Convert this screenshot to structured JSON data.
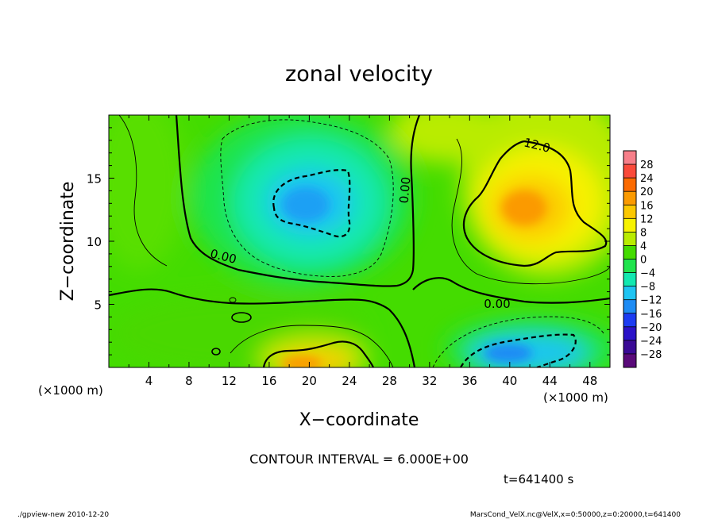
{
  "chart_data": {
    "type": "heatmap",
    "title": "zonal velocity",
    "xlabel": "X−coordinate",
    "ylabel": "Z−coordinate",
    "x_unit_label": "(×1000 m)",
    "y_unit_label": "(×1000 m)",
    "xlim": [
      0,
      50
    ],
    "ylim": [
      0,
      20
    ],
    "x_ticks": [
      {
        "v": 4,
        "label": "4"
      },
      {
        "v": 8,
        "label": "8"
      },
      {
        "v": 12,
        "label": "12"
      },
      {
        "v": 16,
        "label": "16"
      },
      {
        "v": 20,
        "label": "20"
      },
      {
        "v": 24,
        "label": "24"
      },
      {
        "v": 28,
        "label": "28"
      },
      {
        "v": 32,
        "label": "32"
      },
      {
        "v": 36,
        "label": "36"
      },
      {
        "v": 40,
        "label": "40"
      },
      {
        "v": 44,
        "label": "44"
      },
      {
        "v": 48,
        "label": "48"
      }
    ],
    "y_ticks": [
      {
        "v": 5,
        "label": "5"
      },
      {
        "v": 10,
        "label": "10"
      },
      {
        "v": 15,
        "label": "15"
      }
    ],
    "colorbar": {
      "labels": [
        "28",
        "24",
        "20",
        "16",
        "12",
        "8",
        "4",
        "0",
        "−4",
        "−8",
        "−12",
        "−16",
        "−20",
        "−24",
        "−28"
      ],
      "colors": [
        "#f77f8a",
        "#fa4a3a",
        "#fb6a00",
        "#fb9a00",
        "#fcc800",
        "#f7f200",
        "#b9ec00",
        "#44dc00",
        "#1fe44d",
        "#12e8b0",
        "#1ec4f2",
        "#1e8cf4",
        "#1c3cf2",
        "#2a12c8",
        "#3a0a96",
        "#5a0a7a"
      ]
    },
    "contour_interval_text": "CONTOUR INTERVAL = 6.000E+00",
    "contour_labels": [
      "12.0",
      "0.00",
      "0.00",
      "0.00"
    ],
    "features": [
      {
        "x": 19.5,
        "z": 12.5,
        "value": -11
      },
      {
        "x": 41.5,
        "z": 12.8,
        "value": 15
      },
      {
        "x": 21.0,
        "z": 0.8,
        "value": 15
      },
      {
        "x": 41.0,
        "z": 1.2,
        "value": -16
      },
      {
        "x": 6.0,
        "z": 10.0,
        "value": 3
      },
      {
        "x": 30.0,
        "z": 2.0,
        "value": 3
      }
    ],
    "time_text": "t=641400 s",
    "footer_left": "./gpview-new   2010-12-20",
    "footer_right": "MarsCond_VelX.nc@VelX,x=0:50000,z=0:20000,t=641400"
  }
}
